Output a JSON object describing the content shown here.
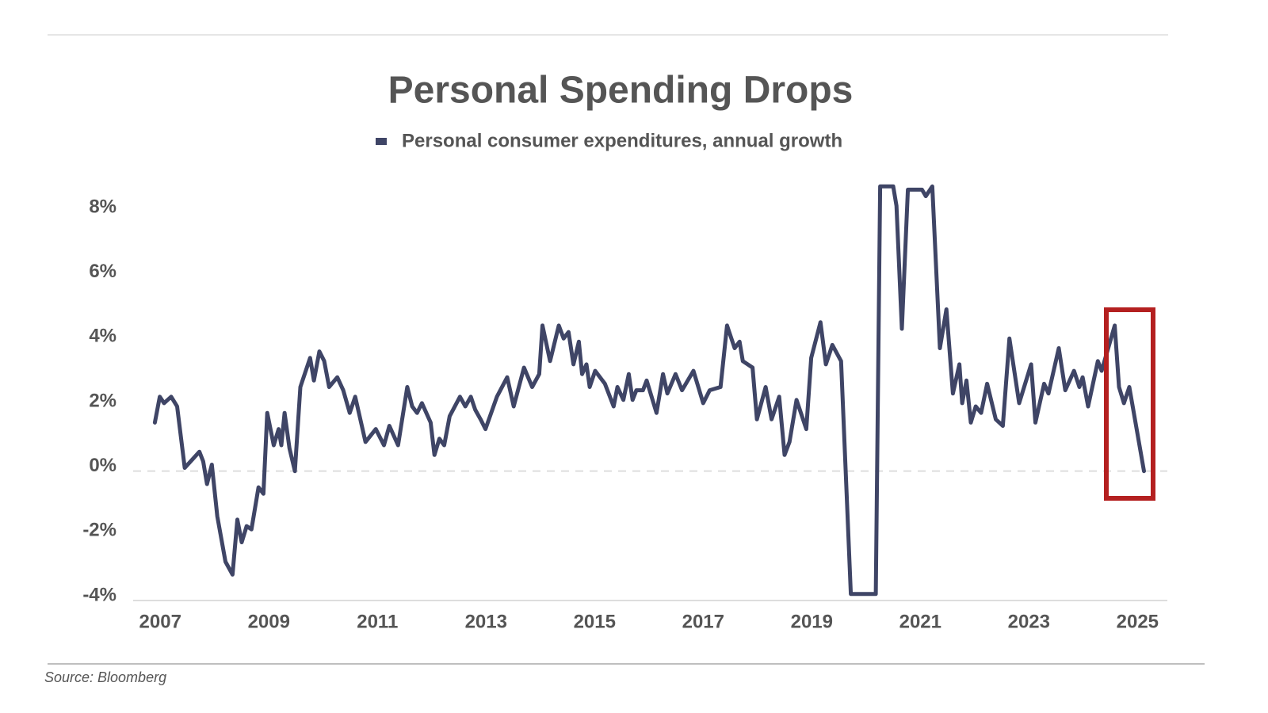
{
  "chart_data": {
    "type": "line",
    "title": "Personal Spending Drops",
    "source": "Source:  Bloomberg",
    "x": [
      2006.9,
      2006.99,
      2007.07,
      2007.2,
      2007.31,
      2007.45,
      2007.72,
      2007.79,
      2007.86,
      2007.95,
      2008.05,
      2008.2,
      2008.33,
      2008.42,
      2008.5,
      2008.59,
      2008.68,
      2008.81,
      2008.9,
      2008.97,
      2009.09,
      2009.18,
      2009.23,
      2009.29,
      2009.38,
      2009.48,
      2009.58,
      2009.76,
      2009.83,
      2009.93,
      2010.02,
      2010.11,
      2010.26,
      2010.37,
      2010.49,
      2010.59,
      2010.78,
      2010.97,
      2011.12,
      2011.22,
      2011.38,
      2011.55,
      2011.64,
      2011.73,
      2011.82,
      2011.98,
      2012.05,
      2012.14,
      2012.23,
      2012.33,
      2012.52,
      2012.62,
      2012.72,
      2012.8,
      2012.9,
      2012.99,
      2013.2,
      2013.39,
      2013.51,
      2013.7,
      2013.85,
      2013.98,
      2014.04,
      2014.18,
      2014.34,
      2014.43,
      2014.52,
      2014.61,
      2014.71,
      2014.77,
      2014.85,
      2014.91,
      2015.01,
      2015.19,
      2015.35,
      2015.42,
      2015.53,
      2015.63,
      2015.7,
      2015.77,
      2015.89,
      2015.96,
      2016.14,
      2016.26,
      2016.34,
      2016.49,
      2016.61,
      2016.82,
      2017.0,
      2017.12,
      2017.32,
      2017.44,
      2017.58,
      2017.67,
      2017.73,
      2017.91,
      2017.99,
      2018.15,
      2018.26,
      2018.4,
      2018.5,
      2018.59,
      2018.72,
      2018.9,
      2018.99,
      2019.16,
      2019.26,
      2019.38,
      2019.54,
      2019.72,
      2020.18,
      2020.26,
      2020.5,
      2020.56,
      2020.66,
      2020.77,
      2021.03,
      2021.1,
      2021.22,
      2021.36,
      2021.48,
      2021.6,
      2021.72,
      2021.77,
      2021.85,
      2021.93,
      2022.02,
      2022.12,
      2022.23,
      2022.39,
      2022.52,
      2022.64,
      2022.82,
      2023.04,
      2023.12,
      2023.28,
      2023.36,
      2023.55,
      2023.67,
      2023.83,
      2023.93,
      2023.99,
      2024.09,
      2024.27,
      2024.34,
      2024.58,
      2024.66,
      2024.75,
      2024.85,
      2025.12
    ],
    "series": [
      {
        "name": "Personal consumer expenditures, annual growth",
        "color": "#3f4566",
        "values": [
          1.5,
          2.3,
          2.1,
          2.3,
          2.0,
          0.1,
          0.6,
          0.3,
          -0.4,
          0.2,
          -1.4,
          -2.8,
          -3.2,
          -1.5,
          -2.2,
          -1.7,
          -1.8,
          -0.5,
          -0.7,
          1.8,
          0.8,
          1.3,
          0.8,
          1.8,
          0.7,
          0.0,
          2.6,
          3.5,
          2.8,
          3.7,
          3.4,
          2.6,
          2.9,
          2.5,
          1.8,
          2.3,
          0.9,
          1.3,
          0.8,
          1.4,
          0.8,
          2.6,
          2.0,
          1.8,
          2.1,
          1.5,
          0.5,
          1.0,
          0.8,
          1.7,
          2.3,
          2.0,
          2.3,
          1.9,
          1.6,
          1.3,
          2.3,
          2.9,
          2.0,
          3.2,
          2.6,
          3.0,
          4.5,
          3.4,
          4.5,
          4.1,
          4.3,
          3.3,
          4.0,
          3.0,
          3.3,
          2.6,
          3.1,
          2.7,
          2.0,
          2.6,
          2.2,
          3.0,
          2.2,
          2.5,
          2.5,
          2.8,
          1.8,
          3.0,
          2.4,
          3.0,
          2.5,
          3.1,
          2.1,
          2.5,
          2.6,
          4.5,
          3.8,
          4.0,
          3.4,
          3.2,
          1.6,
          2.6,
          1.6,
          2.3,
          0.5,
          0.9,
          2.2,
          1.3,
          3.5,
          4.6,
          3.3,
          3.9,
          3.4,
          -3.8,
          -3.8,
          8.8,
          8.8,
          8.2,
          4.4,
          8.7,
          8.7,
          8.5,
          8.8,
          3.8,
          5.0,
          2.4,
          3.3,
          2.1,
          2.8,
          1.5,
          2.0,
          1.8,
          2.7,
          1.6,
          1.4,
          4.1,
          2.1,
          3.3,
          1.5,
          2.7,
          2.4,
          3.8,
          2.5,
          3.1,
          2.6,
          2.9,
          2.0,
          3.4,
          3.1,
          4.5,
          2.6,
          2.1,
          2.6,
          0.0
        ]
      }
    ],
    "xlim": [
      2006.5,
      2025.55
    ],
    "xticks": [
      2007,
      2009,
      2011,
      2013,
      2015,
      2017,
      2019,
      2021,
      2023,
      2025
    ],
    "ylim": [
      -4,
      9.2
    ],
    "yticks": [
      {
        "value": -4,
        "label": "-4%"
      },
      {
        "value": -2,
        "label": "-2%"
      },
      {
        "value": 0,
        "label": "0%"
      },
      {
        "value": 2,
        "label": "2%"
      },
      {
        "value": 4,
        "label": "4%"
      },
      {
        "value": 6,
        "label": "6%"
      },
      {
        "value": 8,
        "label": "8%"
      }
    ],
    "grid": false
  }
}
